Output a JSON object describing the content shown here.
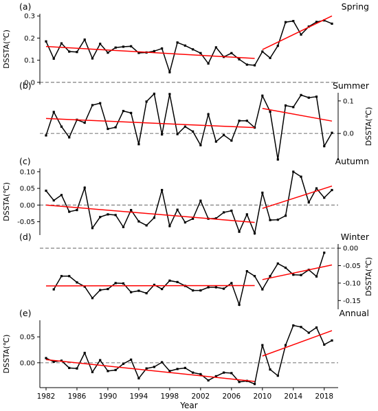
{
  "xlabel": "Year",
  "x_ticks": [
    1982,
    1986,
    1990,
    1994,
    1998,
    2002,
    2006,
    2010,
    2014,
    2018
  ],
  "years": [
    1982,
    1983,
    1984,
    1985,
    1986,
    1987,
    1988,
    1989,
    1990,
    1991,
    1992,
    1993,
    1994,
    1995,
    1996,
    1997,
    1998,
    1999,
    2000,
    2001,
    2002,
    2003,
    2004,
    2005,
    2006,
    2007,
    2008,
    2009,
    2010,
    2011,
    2012,
    2013,
    2014,
    2015,
    2016,
    2017,
    2018,
    2019
  ],
  "colors": {
    "series": "#000000",
    "trend": "#ff0000",
    "zero_line": "#808080"
  },
  "chart_data": [
    {
      "type": "line",
      "panel_label": "(a)",
      "title": "Spring",
      "ylabel": "DSSTA(℃)",
      "ylabel_side": "left",
      "ylim": [
        -0.01,
        0.31
      ],
      "yticks": [
        0.0,
        0.1,
        0.2,
        0.3
      ],
      "ytick_labels": [
        "0.0",
        "0.1",
        "0.2",
        "0.3"
      ],
      "values": [
        0.185,
        0.107,
        0.176,
        0.139,
        0.137,
        0.193,
        0.108,
        0.174,
        0.134,
        0.157,
        0.161,
        0.163,
        0.133,
        0.135,
        0.141,
        0.153,
        0.046,
        0.18,
        0.166,
        0.149,
        0.132,
        0.085,
        0.158,
        0.115,
        0.132,
        0.104,
        0.08,
        0.077,
        0.139,
        0.11,
        0.165,
        0.272,
        0.277,
        0.216,
        0.252,
        0.273,
        0.28,
        0.265
      ],
      "trend1": {
        "x": [
          1982,
          2009
        ],
        "y": [
          0.162,
          0.108
        ]
      },
      "trend2": {
        "x": [
          2010,
          2019
        ],
        "y": [
          0.148,
          0.3
        ]
      }
    },
    {
      "type": "line",
      "panel_label": "(b)",
      "title": "Summer",
      "ylabel": "DSSTA(℃)",
      "ylabel_side": "right",
      "ylim": [
        -0.082,
        0.125
      ],
      "yticks": [
        0.0,
        0.1
      ],
      "ytick_labels": [
        "0.0",
        "0.1"
      ],
      "values": [
        -0.006,
        0.066,
        0.021,
        -0.012,
        0.042,
        0.033,
        0.087,
        0.093,
        0.014,
        0.019,
        0.069,
        0.063,
        -0.033,
        0.098,
        0.122,
        -0.003,
        0.121,
        -0.002,
        0.021,
        0.006,
        -0.036,
        0.059,
        -0.025,
        -0.005,
        -0.022,
        0.039,
        0.039,
        0.018,
        0.116,
        0.067,
        -0.08,
        0.086,
        0.081,
        0.118,
        0.11,
        0.113,
        -0.039,
        0.002
      ],
      "trend1": {
        "x": [
          1982,
          2009
        ],
        "y": [
          0.046,
          0.018
        ]
      },
      "trend2": {
        "x": [
          2010,
          2019
        ],
        "y": [
          0.077,
          0.038
        ]
      }
    },
    {
      "type": "line",
      "panel_label": "(c)",
      "title": "Autumn",
      "ylabel": "DSSTA(℃)",
      "ylabel_side": "left",
      "ylim": [
        -0.09,
        0.11
      ],
      "yticks": [
        -0.05,
        0.0,
        0.05,
        0.1
      ],
      "ytick_labels": [
        "-0.05",
        "0.00",
        "0.05",
        "0.10"
      ],
      "values": [
        0.043,
        0.014,
        0.03,
        -0.02,
        -0.015,
        0.052,
        -0.069,
        -0.036,
        -0.028,
        -0.03,
        -0.066,
        -0.015,
        -0.049,
        -0.061,
        -0.038,
        0.045,
        -0.063,
        -0.014,
        -0.052,
        -0.041,
        0.013,
        -0.041,
        -0.04,
        -0.022,
        -0.017,
        -0.08,
        -0.028,
        -0.085,
        0.037,
        -0.045,
        -0.044,
        -0.032,
        0.1,
        0.085,
        0.008,
        0.05,
        0.022,
        0.045
      ],
      "trend1": {
        "x": [
          1982,
          2009
        ],
        "y": [
          0.0,
          -0.052
        ]
      },
      "trend2": {
        "x": [
          2010,
          2019
        ],
        "y": [
          -0.01,
          0.057
        ]
      }
    },
    {
      "type": "line",
      "panel_label": "(d)",
      "title": "Winter",
      "ylabel": "DSSTA(℃)",
      "ylabel_side": "right",
      "ylim": [
        -0.175,
        0.012
      ],
      "yticks": [
        -0.15,
        -0.1,
        -0.05,
        0.0
      ],
      "ytick_labels": [
        "-0.15",
        "-0.10",
        "-0.05",
        "0.00"
      ],
      "values": [
        null,
        -0.118,
        -0.08,
        -0.08,
        -0.098,
        -0.11,
        -0.143,
        -0.12,
        -0.117,
        -0.1,
        -0.101,
        -0.126,
        -0.122,
        -0.129,
        -0.105,
        -0.117,
        -0.093,
        -0.097,
        -0.108,
        -0.121,
        -0.121,
        -0.112,
        -0.112,
        -0.116,
        -0.1,
        -0.162,
        -0.066,
        -0.08,
        -0.118,
        -0.08,
        -0.044,
        -0.056,
        -0.076,
        -0.077,
        -0.062,
        -0.081,
        -0.013,
        null
      ],
      "trend1": {
        "x": [
          1982,
          2009
        ],
        "y": [
          -0.108,
          -0.107
        ]
      },
      "trend2": {
        "x": [
          2010,
          2019
        ],
        "y": [
          -0.09,
          -0.048
        ]
      }
    },
    {
      "type": "line",
      "panel_label": "(e)",
      "title": "Annual",
      "ylabel": "DSSTA(℃)",
      "ylabel_side": "left",
      "ylim": [
        -0.048,
        0.082
      ],
      "yticks": [
        0.0,
        0.05
      ],
      "ytick_labels": [
        "0.00",
        "0.05"
      ],
      "values": [
        0.009,
        0.002,
        0.004,
        -0.01,
        -0.011,
        0.019,
        -0.018,
        0.005,
        -0.016,
        -0.014,
        -0.002,
        0.006,
        -0.03,
        -0.011,
        -0.008,
        0.001,
        -0.016,
        -0.012,
        -0.01,
        -0.019,
        -0.022,
        -0.034,
        -0.026,
        -0.019,
        -0.02,
        -0.037,
        -0.035,
        -0.041,
        0.034,
        -0.013,
        -0.025,
        0.034,
        0.072,
        0.069,
        0.058,
        0.068,
        0.035,
        0.043
      ],
      "trend1": {
        "x": [
          1982,
          2009
        ],
        "y": [
          0.006,
          -0.036
        ]
      },
      "trend2": {
        "x": [
          2010,
          2019
        ],
        "y": [
          0.013,
          0.062
        ]
      }
    }
  ]
}
